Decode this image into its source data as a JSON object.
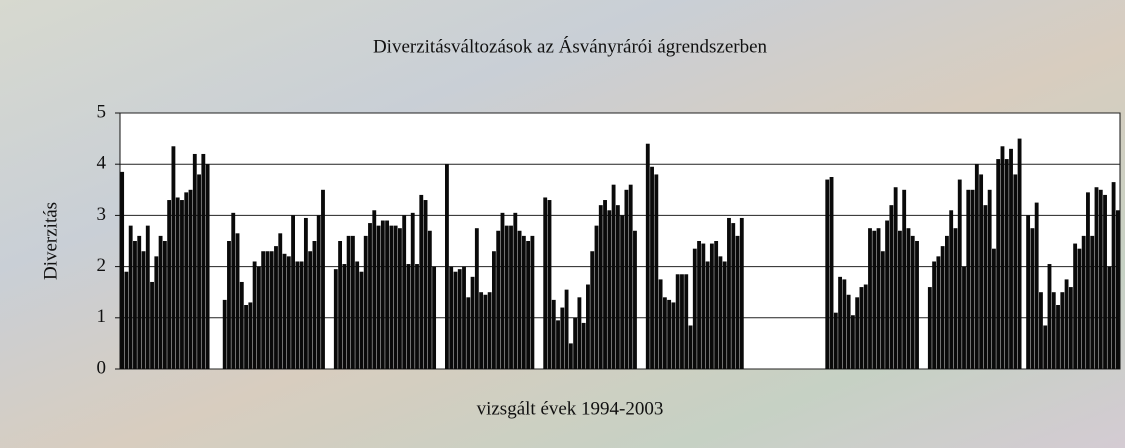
{
  "chart_data": {
    "type": "bar",
    "title": "Diverzitásváltozások az Ásványrárói ágrendszerben",
    "x_label": "vizsgált évek 1994-2003",
    "y_label": "Diverzitás",
    "color": "#0a0a0a",
    "ylim": [
      0,
      5
    ],
    "yticks": [
      0,
      1,
      2,
      3,
      4,
      5
    ],
    "grid": true,
    "values": [
      3.85,
      1.9,
      2.8,
      2.5,
      2.6,
      2.3,
      2.8,
      1.7,
      2.2,
      2.6,
      2.5,
      3.3,
      4.35,
      3.35,
      3.3,
      3.45,
      3.5,
      4.2,
      3.8,
      4.2,
      4.0,
      null,
      null,
      null,
      1.35,
      2.5,
      3.05,
      2.65,
      1.7,
      1.25,
      1.3,
      2.1,
      2.0,
      2.3,
      2.3,
      2.3,
      2.4,
      2.65,
      2.25,
      2.2,
      3.0,
      2.1,
      2.1,
      2.95,
      2.3,
      2.5,
      3.0,
      3.5,
      null,
      null,
      1.95,
      2.5,
      2.05,
      2.6,
      2.6,
      2.1,
      1.9,
      2.6,
      2.85,
      3.1,
      2.8,
      2.9,
      2.9,
      2.8,
      2.8,
      2.75,
      3.0,
      2.05,
      3.05,
      2.05,
      3.4,
      3.3,
      2.7,
      2.0,
      null,
      null,
      4.0,
      2.0,
      1.9,
      1.95,
      2.0,
      1.4,
      1.8,
      2.75,
      1.5,
      1.45,
      1.5,
      2.3,
      2.7,
      3.05,
      2.8,
      2.8,
      3.05,
      2.7,
      2.6,
      2.5,
      2.6,
      null,
      null,
      3.35,
      3.3,
      1.35,
      0.95,
      1.2,
      1.55,
      0.5,
      1.0,
      1.4,
      0.9,
      1.65,
      2.3,
      2.8,
      3.2,
      3.3,
      3.1,
      3.6,
      3.2,
      3.0,
      3.5,
      3.6,
      2.7,
      null,
      null,
      4.4,
      3.95,
      3.8,
      1.75,
      1.4,
      1.35,
      1.3,
      1.85,
      1.85,
      1.85,
      0.85,
      2.35,
      2.5,
      2.45,
      2.1,
      2.45,
      2.5,
      2.2,
      2.1,
      2.95,
      2.85,
      2.6,
      2.95,
      null,
      null,
      null,
      null,
      null,
      null,
      null,
      null,
      null,
      null,
      null,
      null,
      null,
      null,
      null,
      null,
      null,
      null,
      null,
      3.7,
      3.75,
      1.1,
      1.8,
      1.75,
      1.45,
      1.05,
      1.4,
      1.6,
      1.65,
      2.75,
      2.7,
      2.75,
      2.3,
      2.9,
      3.2,
      3.55,
      2.7,
      3.5,
      2.75,
      2.6,
      2.5,
      null,
      null,
      1.6,
      2.1,
      2.2,
      2.4,
      2.6,
      3.1,
      2.75,
      3.7,
      2.0,
      3.5,
      3.5,
      4.0,
      3.8,
      3.2,
      3.5,
      2.35,
      4.1,
      4.35,
      4.1,
      4.3,
      3.8,
      4.5,
      null,
      3.0,
      2.75,
      3.25,
      1.5,
      0.85,
      2.05,
      1.5,
      1.25,
      1.5,
      1.75,
      1.6,
      2.45,
      2.35,
      2.6,
      3.45,
      2.6,
      3.55,
      3.5,
      3.4,
      2.0,
      3.65,
      3.1
    ]
  }
}
